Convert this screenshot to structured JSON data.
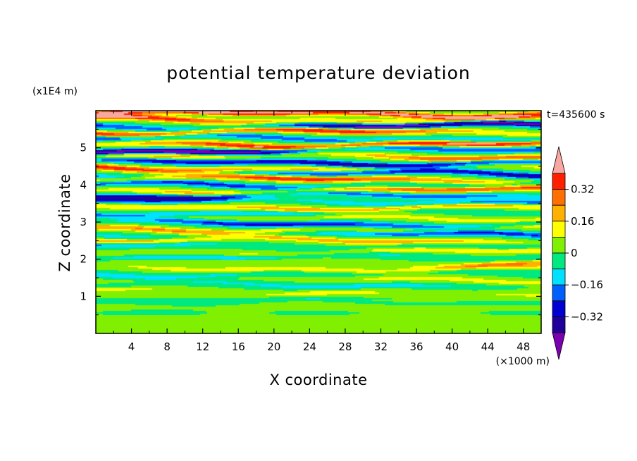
{
  "chart_data": {
    "type": "heatmap",
    "title": "potential temperature deviation",
    "xlabel": "X coordinate",
    "ylabel": "Z coordinate",
    "x_unit": "(×1000 m)",
    "y_unit": "(x1E4 m)",
    "time_label": "t=435600 s",
    "xlim": [
      0,
      50
    ],
    "ylim": [
      0,
      6
    ],
    "x_ticks": [
      "4",
      "8",
      "12",
      "16",
      "20",
      "24",
      "28",
      "32",
      "36",
      "40",
      "44",
      "48"
    ],
    "y_ticks": [
      "1",
      "2",
      "3",
      "4",
      "5"
    ],
    "colorbar": {
      "levels": [
        -0.48,
        -0.4,
        -0.32,
        -0.24,
        -0.16,
        -0.08,
        0,
        0.08,
        0.16,
        0.24,
        0.32,
        0.4,
        0.48
      ],
      "tick_labels": [
        "0.32",
        "0.16",
        "0",
        "−0.16",
        "−0.32"
      ],
      "colors": [
        "#7b00b0",
        "#20009a",
        "#0000d0",
        "#0060ff",
        "#00e0ff",
        "#00e880",
        "#80f000",
        "#ffff00",
        "#ffb000",
        "#ff7000",
        "#ff2000",
        "#f8a8a0"
      ]
    },
    "bands": [
      {
        "z": 5.92,
        "amp": 0.44
      },
      {
        "z": 5.75,
        "amp": 0.4
      },
      {
        "z": 5.58,
        "amp": -0.45
      },
      {
        "z": 5.42,
        "amp": 0.36
      },
      {
        "z": 5.25,
        "amp": -0.38
      },
      {
        "z": 5.1,
        "amp": 0.42
      },
      {
        "z": 4.93,
        "amp": -0.44
      },
      {
        "z": 4.76,
        "amp": 0.34
      },
      {
        "z": 4.6,
        "amp": -0.34
      },
      {
        "z": 4.45,
        "amp": 0.32
      },
      {
        "z": 4.3,
        "amp": -0.36
      },
      {
        "z": 4.15,
        "amp": 0.3
      },
      {
        "z": 4.0,
        "amp": -0.34
      },
      {
        "z": 3.85,
        "amp": 0.3
      },
      {
        "z": 3.7,
        "amp": -0.26
      },
      {
        "z": 3.55,
        "amp": -0.3
      },
      {
        "z": 3.4,
        "amp": 0.24
      },
      {
        "z": 3.25,
        "amp": -0.18
      },
      {
        "z": 3.1,
        "amp": 0.18
      },
      {
        "z": 2.95,
        "amp": -0.24
      },
      {
        "z": 2.8,
        "amp": 0.24
      },
      {
        "z": 2.65,
        "amp": -0.22
      },
      {
        "z": 2.5,
        "amp": 0.2
      },
      {
        "z": 2.35,
        "amp": -0.18
      },
      {
        "z": 2.2,
        "amp": 0.16
      },
      {
        "z": 2.05,
        "amp": -0.14
      },
      {
        "z": 1.9,
        "amp": 0.16
      },
      {
        "z": 1.75,
        "amp": 0.14
      },
      {
        "z": 1.6,
        "amp": -0.12
      },
      {
        "z": 1.45,
        "amp": 0.12
      },
      {
        "z": 1.3,
        "amp": -0.1
      },
      {
        "z": 1.15,
        "amp": 0.1
      },
      {
        "z": 1.0,
        "amp": 0.08
      },
      {
        "z": 0.85,
        "amp": -0.08
      }
    ],
    "near_surface_field": 0.05,
    "legend_position": "right"
  }
}
